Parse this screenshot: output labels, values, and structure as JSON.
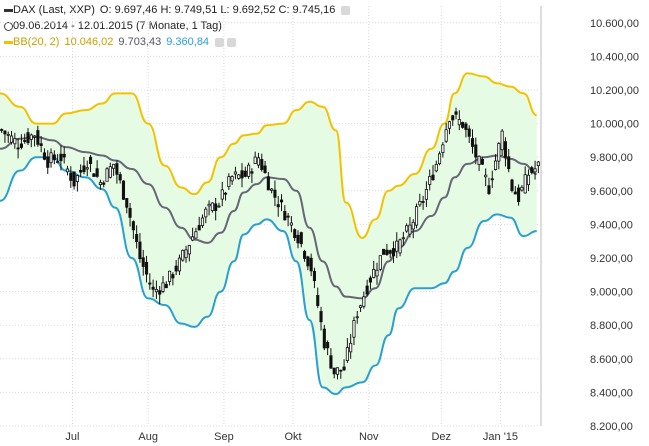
{
  "legend": {
    "title_line": "DAX (Last, XXP)",
    "ohlc": "O: 9.697,46  H: 9.749,51  L: 9.692,52  C: 9.745,16",
    "period_line": "09.06.2014 - 12.01.2015 (7 Monate, 1 Tag)",
    "bb_label": "BB(20, 2)",
    "bb_upper": "10.046,02",
    "bb_mid": "9.703,43",
    "bb_lower": "9.360,84"
  },
  "colors": {
    "upper_band": "#f2c200",
    "middle_band": "#666677",
    "lower_band": "#2a9fd0",
    "band_fill": "#e6fbe3",
    "candle": "#111111",
    "grid": "#d8d8d8"
  },
  "chart_data": {
    "type": "candlestick",
    "title": "DAX (Last, XXP)",
    "ylim": [
      8200,
      10700
    ],
    "y_ticks": [
      "10.600,00",
      "10.400,00",
      "10.200,00",
      "10.000,00",
      "9.800,00",
      "9.600,00",
      "9.400,00",
      "9.200,00",
      "9.000,00",
      "8.800,00",
      "8.600,00",
      "8.400,00",
      "8.200,00"
    ],
    "y_tick_values": [
      10600,
      10400,
      10200,
      10000,
      9800,
      9600,
      9400,
      9200,
      9000,
      8800,
      8600,
      8400,
      8200
    ],
    "x_ticks": [
      "Jul",
      "Aug",
      "Sep",
      "Okt",
      "Nov",
      "Dez",
      "Jan '15"
    ],
    "x_tick_days": [
      22,
      45,
      68,
      89,
      112,
      134,
      152
    ],
    "n_days": 164,
    "grid": true,
    "series": [
      {
        "name": "BB(20, 2) upper",
        "x": [
          0,
          6,
          11,
          16,
          20,
          26,
          31,
          35,
          40,
          45,
          50,
          55,
          59,
          63,
          67,
          71,
          74,
          78,
          81,
          86,
          90,
          94,
          98,
          102,
          105,
          110,
          114,
          118,
          121,
          126,
          131,
          135,
          138,
          142,
          147,
          151,
          155,
          159,
          163
        ],
        "y": [
          10180,
          10100,
          10000,
          10000,
          10060,
          10080,
          10120,
          10180,
          10180,
          10000,
          9750,
          9620,
          9580,
          9650,
          9800,
          9880,
          9930,
          9940,
          9990,
          10000,
          10080,
          10130,
          10100,
          9960,
          9530,
          9320,
          9430,
          9600,
          9630,
          9700,
          9850,
          10000,
          10180,
          10300,
          10280,
          10240,
          10220,
          10180,
          10050
        ]
      },
      {
        "name": "BB(20, 2) middle",
        "x": [
          0,
          6,
          11,
          16,
          20,
          26,
          31,
          35,
          40,
          45,
          50,
          55,
          59,
          63,
          67,
          71,
          74,
          78,
          81,
          86,
          90,
          94,
          98,
          102,
          105,
          110,
          114,
          118,
          121,
          126,
          131,
          135,
          138,
          142,
          147,
          151,
          155,
          159,
          163
        ],
        "y": [
          9850,
          9910,
          9920,
          9900,
          9860,
          9830,
          9810,
          9780,
          9730,
          9640,
          9500,
          9380,
          9310,
          9290,
          9350,
          9480,
          9590,
          9640,
          9680,
          9670,
          9600,
          9380,
          9180,
          9030,
          8970,
          8960,
          9020,
          9180,
          9260,
          9360,
          9450,
          9560,
          9680,
          9760,
          9800,
          9810,
          9790,
          9760,
          9700
        ]
      },
      {
        "name": "BB(20, 2) lower",
        "x": [
          0,
          6,
          11,
          16,
          20,
          26,
          31,
          35,
          40,
          45,
          50,
          55,
          59,
          63,
          67,
          71,
          74,
          78,
          81,
          86,
          90,
          94,
          98,
          102,
          105,
          110,
          114,
          118,
          121,
          126,
          131,
          135,
          138,
          142,
          147,
          151,
          155,
          159,
          163
        ],
        "y": [
          9540,
          9720,
          9800,
          9800,
          9720,
          9680,
          9610,
          9500,
          9200,
          8960,
          8920,
          8810,
          8790,
          8850,
          9000,
          9180,
          9340,
          9400,
          9430,
          9360,
          9180,
          8830,
          8430,
          8390,
          8430,
          8460,
          8560,
          8740,
          8900,
          9020,
          9020,
          9050,
          9120,
          9260,
          9420,
          9460,
          9440,
          9330,
          9360
        ]
      },
      {
        "name": "Price (close path)",
        "x": [
          0,
          5,
          10,
          14,
          18,
          22,
          26,
          30,
          34,
          38,
          42,
          46,
          50,
          54,
          58,
          62,
          66,
          70,
          74,
          78,
          82,
          86,
          90,
          94,
          98,
          101,
          104,
          108,
          112,
          116,
          120,
          124,
          128,
          132,
          136,
          140,
          144,
          148,
          152,
          155,
          157,
          160,
          163
        ],
        "y": [
          9960,
          9880,
          9940,
          9780,
          9800,
          9650,
          9780,
          9650,
          9760,
          9530,
          9200,
          9000,
          9050,
          9170,
          9330,
          9470,
          9530,
          9680,
          9690,
          9800,
          9600,
          9470,
          9330,
          9140,
          8700,
          8520,
          8540,
          8880,
          9080,
          9240,
          9260,
          9380,
          9550,
          9760,
          10050,
          10000,
          9810,
          9620,
          9940,
          9620,
          9560,
          9700,
          9745
        ]
      }
    ]
  }
}
